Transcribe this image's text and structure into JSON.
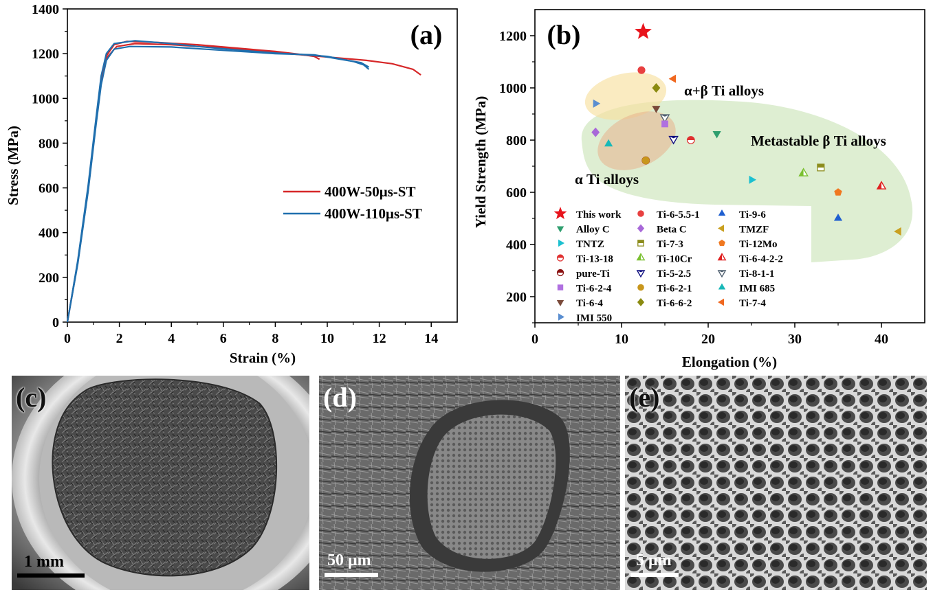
{
  "chart_data": [
    {
      "panel": "(a)",
      "type": "line",
      "xlabel": "Strain (%)",
      "ylabel": "Stress (MPa)",
      "xlim": [
        0,
        15
      ],
      "ylim": [
        0,
        1400
      ],
      "xticks": [
        0,
        2,
        4,
        6,
        8,
        10,
        12,
        14
      ],
      "yticks": [
        0,
        200,
        400,
        600,
        800,
        1000,
        1200,
        1400
      ],
      "legend_position": "right-middle",
      "series": [
        {
          "name": "400W-50μs-ST",
          "color": "#d62728",
          "points": [
            [
              0,
              0
            ],
            [
              0.4,
              270
            ],
            [
              0.8,
              600
            ],
            [
              1.1,
              900
            ],
            [
              1.3,
              1090
            ],
            [
              1.5,
              1190
            ],
            [
              1.8,
              1240
            ],
            [
              2.3,
              1255
            ],
            [
              3.5,
              1250
            ],
            [
              5,
              1240
            ],
            [
              6,
              1230
            ],
            [
              7,
              1220
            ],
            [
              8,
              1210
            ],
            [
              9,
              1196
            ],
            [
              9.5,
              1188
            ],
            [
              9.7,
              1175
            ]
          ]
        },
        {
          "name": "400W-50μs-ST",
          "color": "#d62728",
          "points": [
            [
              0,
              0
            ],
            [
              0.4,
              265
            ],
            [
              0.8,
              590
            ],
            [
              1.1,
              890
            ],
            [
              1.3,
              1080
            ],
            [
              1.5,
              1180
            ],
            [
              1.9,
              1232
            ],
            [
              2.6,
              1245
            ],
            [
              4,
              1240
            ],
            [
              6,
              1225
            ],
            [
              8,
              1205
            ],
            [
              10,
              1185
            ],
            [
              11.5,
              1170
            ],
            [
              12.5,
              1155
            ],
            [
              13.3,
              1130
            ],
            [
              13.6,
              1105
            ]
          ]
        },
        {
          "name": "400W-110μs-ST",
          "color": "#1f6fae",
          "points": [
            [
              0,
              0
            ],
            [
              0.4,
              275
            ],
            [
              0.8,
              610
            ],
            [
              1.1,
              910
            ],
            [
              1.3,
              1100
            ],
            [
              1.5,
              1200
            ],
            [
              1.8,
              1245
            ],
            [
              2.6,
              1258
            ],
            [
              4,
              1245
            ],
            [
              5,
              1232
            ],
            [
              6,
              1222
            ],
            [
              7,
              1212
            ],
            [
              8,
              1203
            ],
            [
              9,
              1196
            ],
            [
              10,
              1188
            ],
            [
              11,
              1165
            ],
            [
              11.4,
              1150
            ],
            [
              11.6,
              1130
            ]
          ]
        },
        {
          "name": "400W-110μs-ST",
          "color": "#1f6fae",
          "points": [
            [
              0,
              0
            ],
            [
              0.4,
              260
            ],
            [
              0.8,
              585
            ],
            [
              1.1,
              880
            ],
            [
              1.3,
              1060
            ],
            [
              1.5,
              1170
            ],
            [
              1.8,
              1220
            ],
            [
              2.4,
              1232
            ],
            [
              4,
              1230
            ],
            [
              6,
              1215
            ],
            [
              8,
              1200
            ],
            [
              9.5,
              1195
            ],
            [
              10.5,
              1175
            ],
            [
              11.3,
              1160
            ],
            [
              11.6,
              1140
            ]
          ]
        }
      ],
      "legend": [
        {
          "name": "400W-50μs-ST",
          "color": "#d62728"
        },
        {
          "name": "400W-110μs-ST",
          "color": "#1f6fae"
        }
      ]
    },
    {
      "panel": "(b)",
      "type": "scatter",
      "xlabel": "Elongation (%)",
      "ylabel": "Yield Strength (MPa)",
      "xlim": [
        0,
        45
      ],
      "ylim": [
        100,
        1300
      ],
      "xticks": [
        0,
        10,
        20,
        30,
        40
      ],
      "yticks": [
        200,
        400,
        600,
        800,
        1000,
        1200
      ],
      "region_labels": [
        "α+β Ti alloys",
        "Metastable β Ti alloys",
        "α Ti alloys"
      ],
      "legend_position": "bottom-left",
      "points": [
        {
          "name": "This work",
          "x": 12.5,
          "y": 1215,
          "marker": "star",
          "color": "#e8141c"
        },
        {
          "name": "Ti-6-5.5-1",
          "x": 12.3,
          "y": 1068,
          "marker": "circle",
          "color": "#e84040"
        },
        {
          "name": "Ti-9-6",
          "x": 35,
          "y": 500,
          "marker": "tri-up",
          "color": "#1f5fd0"
        },
        {
          "name": "Alloy C",
          "x": 21,
          "y": 825,
          "marker": "tri-down",
          "color": "#2e9e6e"
        },
        {
          "name": "Beta C",
          "x": 7,
          "y": 830,
          "marker": "diamond",
          "color": "#a868d8"
        },
        {
          "name": "TMZF",
          "x": 42,
          "y": 450,
          "marker": "tri-left",
          "color": "#c9a020"
        },
        {
          "name": "TNTZ",
          "x": 25,
          "y": 648,
          "marker": "tri-right",
          "color": "#1cc0d0"
        },
        {
          "name": "Ti-7-3",
          "x": 33,
          "y": 695,
          "marker": "square-half",
          "color": "#8c8c1c"
        },
        {
          "name": "Ti-12Mo",
          "x": 35,
          "y": 600,
          "marker": "pentagon",
          "color": "#f07820"
        },
        {
          "name": "Ti-13-18",
          "x": 18,
          "y": 800,
          "marker": "circle-half",
          "color": "#e03030"
        },
        {
          "name": "Ti-10Cr",
          "x": 31,
          "y": 672,
          "marker": "tri-up-half",
          "color": "#7ac030"
        },
        {
          "name": "Ti-6-4-2-2",
          "x": 40,
          "y": 622,
          "marker": "tri-up-half",
          "color": "#e02020"
        },
        {
          "name": "pure-Ti",
          "x": 12.8,
          "y": 722,
          "marker": "circle-half",
          "color": "#8a1010"
        },
        {
          "name": "Ti-5-2.5",
          "x": 16,
          "y": 805,
          "marker": "tri-down-half",
          "color": "#101080"
        },
        {
          "name": "Ti-8-1-1",
          "x": 15,
          "y": 888,
          "marker": "tri-down-half",
          "color": "#506070"
        },
        {
          "name": "Ti-6-2-4",
          "x": 15,
          "y": 862,
          "marker": "square",
          "color": "#b070e0"
        },
        {
          "name": "Ti-6-2-1",
          "x": 12.8,
          "y": 722,
          "marker": "circle",
          "color": "#c8961c"
        },
        {
          "name": "IMI 685",
          "x": 8.5,
          "y": 785,
          "marker": "tri-up",
          "color": "#18b8b8"
        },
        {
          "name": "Ti-6-4",
          "x": 14,
          "y": 922,
          "marker": "tri-down",
          "color": "#7a4a3a"
        },
        {
          "name": "Ti-6-6-2",
          "x": 14,
          "y": 1000,
          "marker": "diamond",
          "color": "#8a8a10"
        },
        {
          "name": "Ti-7-4",
          "x": 16,
          "y": 1035,
          "marker": "tri-left",
          "color": "#f06820"
        },
        {
          "name": "IMI 550",
          "x": 7,
          "y": 940,
          "marker": "tri-right",
          "color": "#5a8ed0"
        }
      ]
    }
  ],
  "panels": {
    "a_label": "(a)",
    "b_label": "(b)",
    "c_label": "(c)",
    "d_label": "(d)",
    "e_label": "(e)",
    "c_scale": "1 mm",
    "d_scale": "50 μm",
    "e_scale": "5 μm"
  }
}
